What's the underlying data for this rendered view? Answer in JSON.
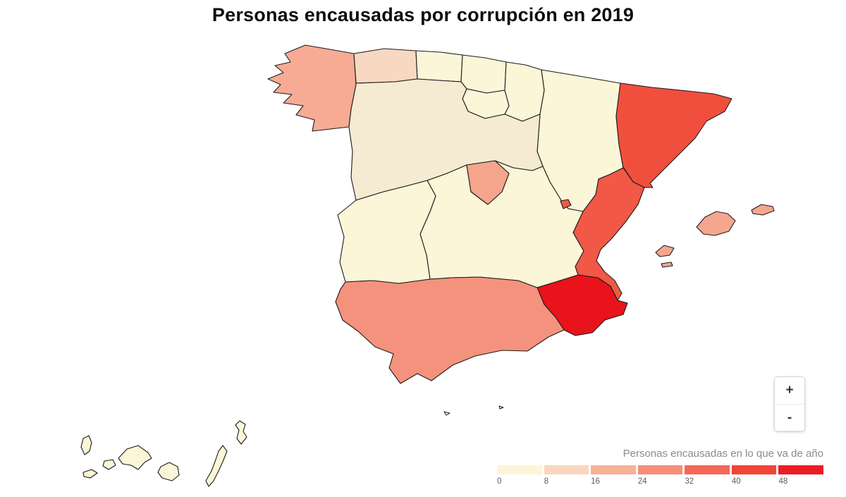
{
  "title": "Personas encausadas por corrupción en 2019",
  "legend": {
    "title": "Personas encausadas en lo que va de año",
    "stops": [
      {
        "label": "0",
        "color": "#FCF5D8"
      },
      {
        "label": "8",
        "color": "#FAD6BF"
      },
      {
        "label": "16",
        "color": "#F8B096"
      },
      {
        "label": "24",
        "color": "#F68E78"
      },
      {
        "label": "32",
        "color": "#F46857"
      },
      {
        "label": "40",
        "color": "#F14538"
      },
      {
        "label": "48",
        "color": "#ED1C24"
      }
    ]
  },
  "zoom_controls": {
    "zoom_in": "+",
    "zoom_out": "-"
  },
  "map": {
    "border_color": "#1c1c1c",
    "regions": [
      {
        "id": "galicia",
        "name": "Galicia",
        "color": "#F7AB94"
      },
      {
        "id": "asturias",
        "name": "Asturias",
        "color": "#F9D8C2"
      },
      {
        "id": "cantabria",
        "name": "Cantabria",
        "color": "#FBF6D8"
      },
      {
        "id": "pais-vasco",
        "name": "País Vasco",
        "color": "#FBF6D8"
      },
      {
        "id": "la-rioja",
        "name": "La Rioja",
        "color": "#FBF6D8"
      },
      {
        "id": "navarra",
        "name": "Navarra",
        "color": "#FBF6D8"
      },
      {
        "id": "aragon",
        "name": "Aragón",
        "color": "#FBF6D8"
      },
      {
        "id": "cataluna",
        "name": "Cataluña",
        "color": "#F14F3D"
      },
      {
        "id": "castilla-y-leon",
        "name": "Castilla y León",
        "color": "#F5EAD2"
      },
      {
        "id": "madrid",
        "name": "Comunidad de Madrid",
        "color": "#F6A58D"
      },
      {
        "id": "castilla-la-mancha",
        "name": "Castilla-La Mancha",
        "color": "#FBF6D8"
      },
      {
        "id": "extremadura",
        "name": "Extremadura",
        "color": "#FBF6D8"
      },
      {
        "id": "comunidad-valenciana",
        "name": "Comunidad Valenciana",
        "color": "#F15846"
      },
      {
        "id": "murcia",
        "name": "Región de Murcia",
        "color": "#E8131B"
      },
      {
        "id": "andalucia",
        "name": "Andalucía",
        "color": "#F5927D"
      },
      {
        "id": "baleares",
        "name": "Illes Balears",
        "color": "#F6A68E"
      },
      {
        "id": "canarias",
        "name": "Canarias",
        "color": "#FBF6D8"
      },
      {
        "id": "ceuta",
        "name": "Ceuta",
        "color": "#FBF6D8"
      },
      {
        "id": "melilla",
        "name": "Melilla",
        "color": "#FBF6D8"
      }
    ]
  }
}
